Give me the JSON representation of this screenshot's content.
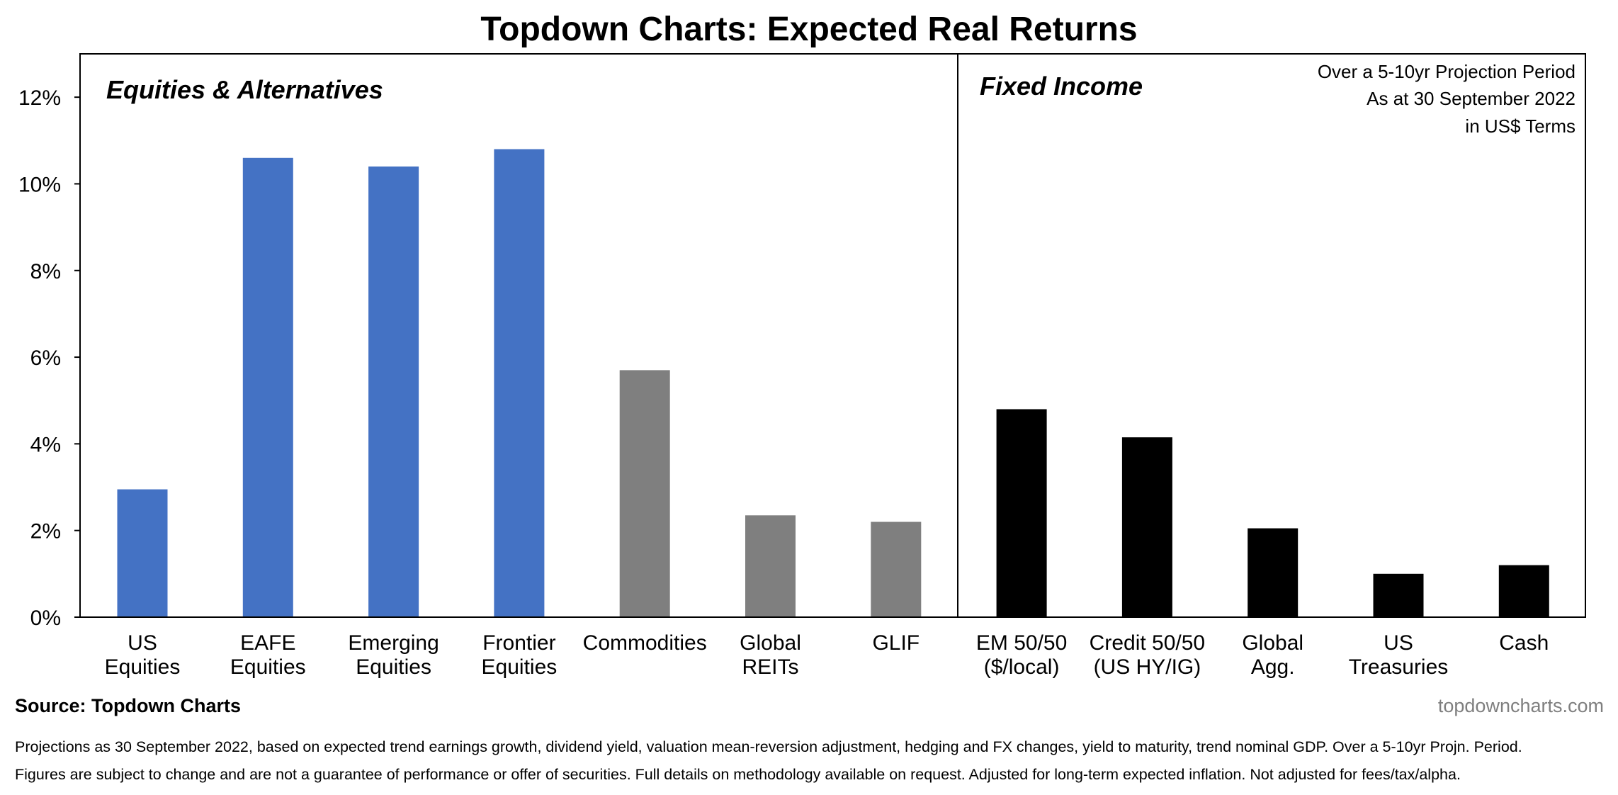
{
  "title": "Topdown Charts: Expected Real Returns",
  "panels": {
    "left_title": "Equities & Alternatives",
    "right_title": "Fixed Income"
  },
  "annotation": [
    "Over a 5-10yr Projection Period",
    "As at 30 September 2022",
    "in US$ Terms"
  ],
  "colors": {
    "equities": "#4472c4",
    "alternatives": "#7f7f7f",
    "fixed_income": "#000000"
  },
  "chart_data": {
    "type": "bar",
    "title": "Topdown Charts: Expected Real Returns",
    "xlabel": "",
    "ylabel": "",
    "ylim": [
      0,
      13
    ],
    "yticks": [
      0,
      2,
      4,
      6,
      8,
      10,
      12
    ],
    "ytick_suffix": "%",
    "grid": false,
    "categories": [
      [
        "US",
        "Equities"
      ],
      [
        "EAFE",
        "Equities"
      ],
      [
        "Emerging",
        "Equities"
      ],
      [
        "Frontier",
        "Equities"
      ],
      [
        "Commodities"
      ],
      [
        "Global",
        "REITs"
      ],
      [
        "GLIF"
      ],
      [
        "EM 50/50",
        "($/local)"
      ],
      [
        "Credit 50/50",
        "(US HY/IG)"
      ],
      [
        "Global",
        "Agg."
      ],
      [
        "US",
        "Treasuries"
      ],
      [
        "Cash"
      ]
    ],
    "values": [
      2.95,
      10.6,
      10.4,
      10.8,
      5.7,
      2.35,
      2.2,
      4.8,
      4.15,
      2.05,
      1.0,
      1.2
    ],
    "groups": [
      "equities",
      "equities",
      "equities",
      "equities",
      "alternatives",
      "alternatives",
      "alternatives",
      "fixed_income",
      "fixed_income",
      "fixed_income",
      "fixed_income",
      "fixed_income"
    ]
  },
  "footer": {
    "source": "Source: Topdown Charts",
    "website": "topdowncharts.com",
    "notes": [
      "Projections as 30 September 2022, based on expected trend earnings growth, dividend yield, valuation mean-reversion adjustment, hedging and FX changes, yield to maturity, trend nominal GDP. Over a  5-10yr Projn. Period.",
      "Figures are subject to change and are not a guarantee of performance or offer of securities.  Full details on methodology available on request.  Adjusted for long-term expected inflation.  Not adjusted for fees/tax/alpha."
    ]
  }
}
